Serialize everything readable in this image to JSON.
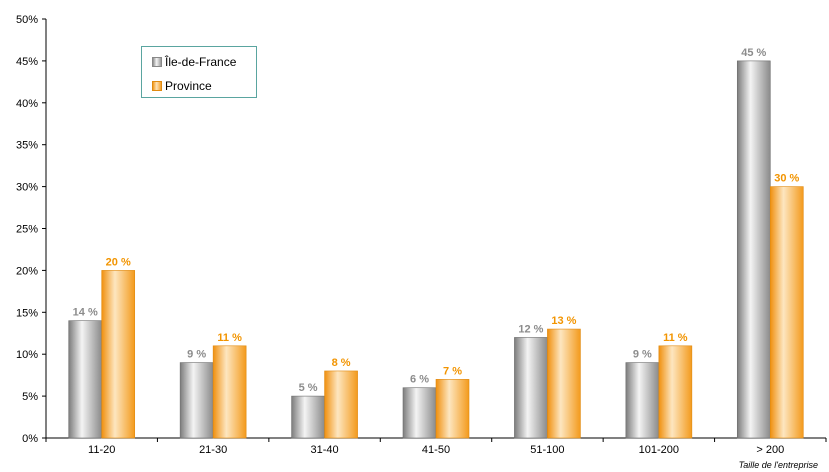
{
  "chart_data": {
    "type": "bar",
    "categories": [
      "11-20",
      "21-30",
      "31-40",
      "41-50",
      "51-100",
      "101-200",
      "> 200"
    ],
    "series": [
      {
        "name": "Île-de-France",
        "values": [
          14,
          9,
          5,
          6,
          12,
          9,
          45
        ],
        "labels": [
          "14 %",
          "9 %",
          "5 %",
          "6 %",
          "12 %",
          "9 %",
          "45 %"
        ],
        "color": "#a6a6a6",
        "label_color": "#8c8c8c"
      },
      {
        "name": "Province",
        "values": [
          20,
          11,
          8,
          7,
          13,
          11,
          30
        ],
        "labels": [
          "20 %",
          "11 %",
          "8 %",
          "7 %",
          "13 %",
          "11 %",
          "30 %"
        ],
        "color": "#f7a531",
        "label_color": "#f29400"
      }
    ],
    "y_ticks": [
      "0%",
      "5%",
      "10%",
      "15%",
      "20%",
      "25%",
      "30%",
      "35%",
      "40%",
      "45%",
      "50%"
    ],
    "ylim": [
      0,
      50
    ],
    "xlabel": "Taille de l'entreprise",
    "ylabel": "",
    "grid": false,
    "legend_position": "top-left"
  }
}
